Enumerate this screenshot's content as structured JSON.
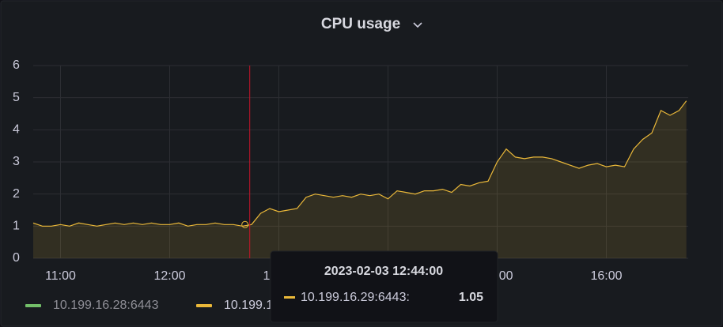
{
  "chart_data": {
    "type": "line",
    "title": "CPU usage",
    "x": [
      "10:45",
      "10:50",
      "10:55",
      "11:00",
      "11:05",
      "11:10",
      "11:15",
      "11:20",
      "11:25",
      "11:30",
      "11:35",
      "11:40",
      "11:45",
      "11:50",
      "11:55",
      "12:00",
      "12:05",
      "12:10",
      "12:15",
      "12:20",
      "12:25",
      "12:30",
      "12:35",
      "12:40",
      "12:45",
      "12:50",
      "12:55",
      "13:00",
      "13:05",
      "13:10",
      "13:15",
      "13:20",
      "13:25",
      "13:30",
      "13:35",
      "13:40",
      "13:45",
      "13:50",
      "13:55",
      "14:00",
      "14:05",
      "14:10",
      "14:15",
      "14:20",
      "14:25",
      "14:30",
      "14:35",
      "14:40",
      "14:45",
      "14:50",
      "14:55",
      "15:00",
      "15:05",
      "15:10",
      "15:15",
      "15:20",
      "15:25",
      "15:30",
      "15:35",
      "15:40",
      "15:45",
      "15:50",
      "15:55",
      "16:00",
      "16:05",
      "16:10",
      "16:15",
      "16:20",
      "16:25",
      "16:30",
      "16:35",
      "16:40",
      "16:44"
    ],
    "series": [
      {
        "name": "10.199.16.28:6443",
        "color": "#73bf69",
        "visible": false
      },
      {
        "name": "10.199.16.29:6443",
        "color": "#eab839",
        "visible": true,
        "values": [
          1.1,
          1.0,
          1.0,
          1.05,
          1.0,
          1.1,
          1.05,
          1.0,
          1.05,
          1.1,
          1.05,
          1.1,
          1.05,
          1.1,
          1.05,
          1.05,
          1.1,
          1.0,
          1.05,
          1.05,
          1.1,
          1.05,
          1.05,
          1.0,
          1.05,
          1.4,
          1.55,
          1.45,
          1.5,
          1.55,
          1.9,
          2.0,
          1.95,
          1.9,
          1.95,
          1.9,
          2.0,
          1.95,
          2.0,
          1.85,
          2.1,
          2.05,
          2.0,
          2.1,
          2.1,
          2.15,
          2.05,
          2.3,
          2.25,
          2.35,
          2.4,
          3.0,
          3.4,
          3.15,
          3.1,
          3.15,
          3.15,
          3.1,
          3.0,
          2.9,
          2.8,
          2.9,
          2.95,
          2.85,
          2.9,
          2.85,
          3.4,
          3.7,
          3.9,
          4.6,
          4.45,
          4.6,
          4.9
        ]
      }
    ],
    "xlim": [
      "10:45",
      "16:45"
    ],
    "xticks": [
      "11:00",
      "12:00",
      "13:00",
      "14:00",
      "15:00",
      "16:00"
    ],
    "ylim": [
      0,
      6
    ],
    "yticks": [
      0,
      1,
      2,
      3,
      4,
      5,
      6
    ],
    "grid": true,
    "tooltip": {
      "time": "2023-02-03 12:44:00",
      "x": "12:44",
      "label": "10.199.16.29:6443:",
      "value": 1.05
    }
  }
}
